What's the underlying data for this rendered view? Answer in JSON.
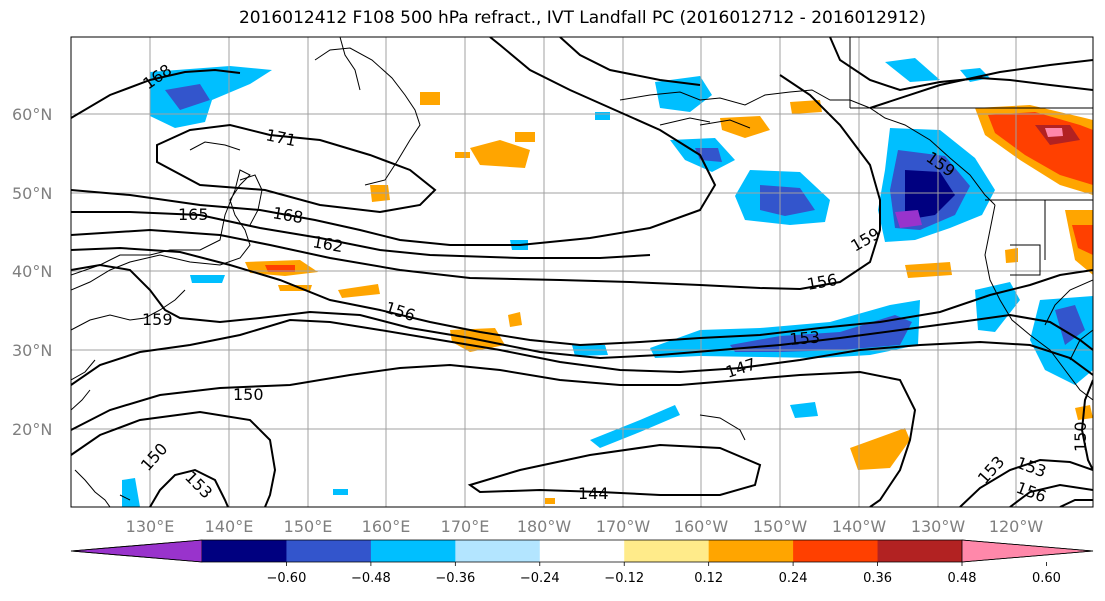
{
  "title": "2016012412 F108 500 hPa refract., IVT Landfall PC (2016012712 - 2016012912)",
  "lon_labels": [
    "130°E",
    "140°E",
    "150°E",
    "160°E",
    "170°E",
    "180°W",
    "170°W",
    "160°W",
    "150°W",
    "140°W",
    "130°W",
    "120°W"
  ],
  "lat_labels": [
    "60°N",
    "50°N",
    "40°N",
    "30°N",
    "20°N"
  ],
  "contour_labels": [
    "168",
    "171",
    "165",
    "168",
    "162",
    "159",
    "159",
    "156",
    "156",
    "153",
    "153",
    "147",
    "150",
    "150",
    "153",
    "144",
    "153",
    "156",
    "159",
    "150"
  ],
  "colorbar": {
    "ticks": [
      "−0.60",
      "−0.48",
      "−0.36",
      "−0.24",
      "−0.12",
      "0.12",
      "0.24",
      "0.36",
      "0.48",
      "0.60"
    ],
    "colors": [
      "#9933cc",
      "#000080",
      "#3355cc",
      "#00bfff",
      "#b3e5ff",
      "#ffffff",
      "#ffeb8a",
      "#ffa500",
      "#ff4000",
      "#b22222",
      "#ff88aa"
    ]
  }
}
